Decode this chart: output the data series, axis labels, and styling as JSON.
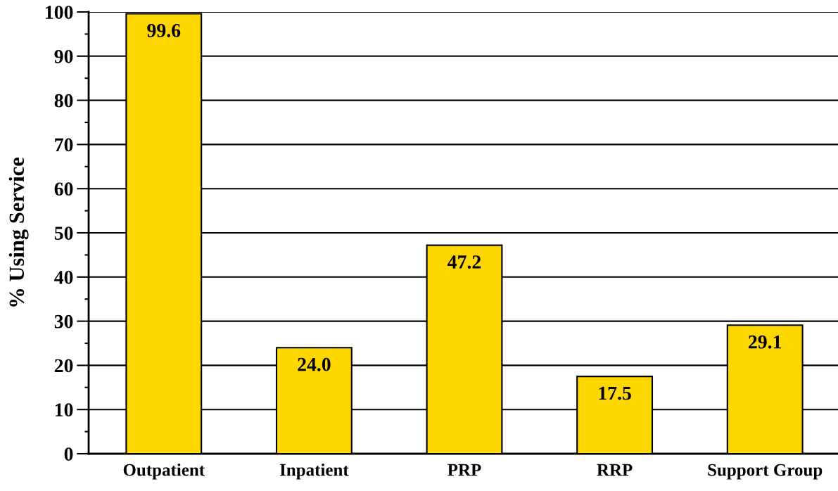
{
  "chart_data": {
    "type": "bar",
    "ylabel": "% Using Service",
    "categories": [
      "Outpatient",
      "Inpatient",
      "PRP",
      "RRP",
      "Support Group"
    ],
    "values": [
      99.6,
      24.0,
      47.2,
      17.5,
      29.1
    ],
    "value_labels": [
      "99.6",
      "24.0",
      "47.2",
      "17.5",
      "29.1"
    ],
    "color": "#ffd700",
    "ylim": [
      0,
      100
    ],
    "yticks": [
      0,
      10,
      20,
      30,
      40,
      50,
      60,
      70,
      80,
      90,
      100
    ],
    "grid": "y"
  }
}
